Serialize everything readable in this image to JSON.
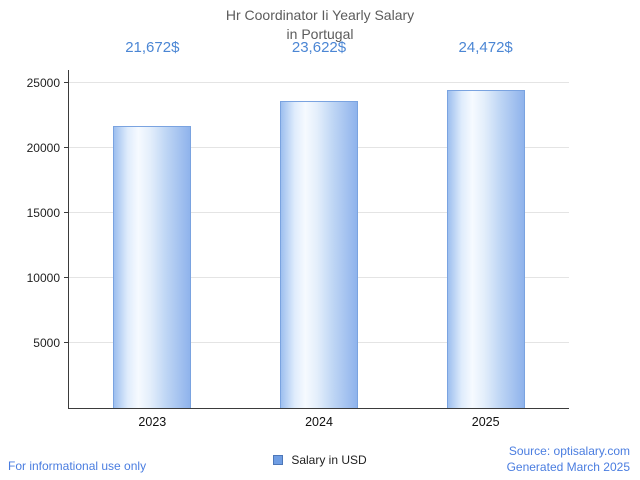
{
  "title": "Hr Coordinator Ii Yearly Salary\nin Portugal",
  "chart_data": {
    "type": "bar",
    "title": "Hr Coordinator Ii Yearly Salary in Portugal",
    "categories": [
      "2023",
      "2024",
      "2025"
    ],
    "series": [
      {
        "name": "Salary in USD",
        "values": [
          21672,
          23622,
          24472
        ]
      }
    ],
    "value_labels": [
      "21,672$",
      "23,622$",
      "24,472$"
    ],
    "xlabel": "",
    "ylabel": "",
    "ylim": [
      0,
      25000
    ],
    "yticks": [
      5000,
      10000,
      15000,
      20000,
      25000
    ],
    "grid": true,
    "legend_position": "bottom"
  },
  "legend": {
    "label": "Salary in USD"
  },
  "footer": {
    "note": "For informational use only",
    "source": "Source: optisalary.com",
    "generated": "Generated March 2025"
  },
  "colors": {
    "title_text": "#5c5c5c",
    "value_label": "#4b86d4",
    "footer_text": "#4a7de0",
    "bar_fill_light": "#f6faff",
    "bar_fill_dark": "#8fb3ec",
    "bar_border": "#7aa3e0",
    "legend_swatch": "#6f9de3",
    "gridline": "#e4e4e4",
    "axis": "#3b3b3b"
  }
}
